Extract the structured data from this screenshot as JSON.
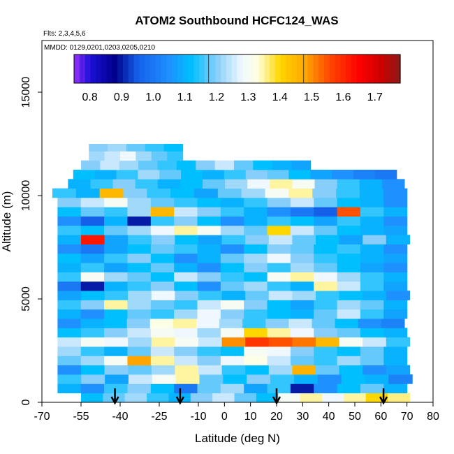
{
  "chart_data": {
    "type": "heatmap",
    "title": "ATOM2 Southbound HCFC124_WAS",
    "flights_label": "Flts: 2,3,4,5,6",
    "dates_label": "MMDD: 0129,0201,0203,0205,0210",
    "xlabel": "Latitude (deg N)",
    "ylabel": "Altitude (m)",
    "xlim": [
      -70,
      80
    ],
    "ylim": [
      0,
      17500
    ],
    "x_ticks": [
      -70,
      -55,
      -40,
      -25,
      -10,
      0,
      10,
      20,
      30,
      40,
      50,
      60,
      70,
      80
    ],
    "y_ticks": [
      0,
      5000,
      10000,
      15000
    ],
    "colorbar": {
      "range": [
        0.75,
        1.78
      ],
      "ticks": [
        0.8,
        0.9,
        1.0,
        1.1,
        1.2,
        1.3,
        1.4,
        1.5,
        1.6,
        1.7
      ],
      "stops": [
        {
          "v": 0.75,
          "color": "#9b30ff"
        },
        {
          "v": 0.8,
          "color": "#1c10d8"
        },
        {
          "v": 0.88,
          "color": "#00008b"
        },
        {
          "v": 0.95,
          "color": "#1560e8"
        },
        {
          "v": 1.05,
          "color": "#1e90ff"
        },
        {
          "v": 1.12,
          "color": "#00bfff"
        },
        {
          "v": 1.2,
          "color": "#87cefa"
        },
        {
          "v": 1.28,
          "color": "#f0f8ff"
        },
        {
          "v": 1.33,
          "color": "#ffffe0"
        },
        {
          "v": 1.4,
          "color": "#ffd700"
        },
        {
          "v": 1.48,
          "color": "#ffa500"
        },
        {
          "v": 1.56,
          "color": "#ff4500"
        },
        {
          "v": 1.65,
          "color": "#ff0000"
        },
        {
          "v": 1.72,
          "color": "#cd0000"
        },
        {
          "v": 1.78,
          "color": "#8b1a1a"
        }
      ]
    },
    "layers": [
      {
        "z0": 0,
        "z1": 450,
        "lat0": -55,
        "lat1": 71,
        "values": [
          1.12,
          1.18,
          1.22,
          1.15,
          1.1,
          1.2,
          1.25,
          1.18,
          1.12,
          1.3,
          1.35,
          1.28,
          1.35,
          1.4,
          1.36
        ]
      },
      {
        "z0": 450,
        "z1": 900,
        "lat0": -64,
        "lat1": 70,
        "values": [
          1.1,
          1.05,
          1.15,
          1.2,
          1.12,
          1.0,
          1.18,
          1.22,
          1.08,
          1.15,
          0.9,
          1.05,
          1.12,
          1.18,
          1.1
        ]
      },
      {
        "z0": 900,
        "z1": 1350,
        "lat0": -64,
        "lat1": 72,
        "values": [
          1.15,
          1.2,
          1.08,
          1.25,
          1.3,
          1.35,
          1.18,
          1.12,
          1.2,
          1.15,
          1.1,
          1.05,
          1.12,
          1.1,
          1.02
        ]
      },
      {
        "z0": 1350,
        "z1": 1800,
        "lat0": -64,
        "lat1": 71,
        "values": [
          1.05,
          1.12,
          1.2,
          1.18,
          1.22,
          1.35,
          1.25,
          1.15,
          1.12,
          1.22,
          1.46,
          1.18,
          1.12,
          1.05,
          1.08
        ]
      },
      {
        "z0": 1800,
        "z1": 2250,
        "lat0": -64,
        "lat1": 70,
        "values": [
          1.18,
          1.22,
          1.3,
          1.48,
          1.35,
          1.25,
          1.2,
          1.28,
          1.32,
          1.25,
          1.18,
          1.15,
          1.22,
          1.18,
          1.1
        ]
      },
      {
        "z0": 2250,
        "z1": 2700,
        "lat0": -64,
        "lat1": 70,
        "values": [
          1.22,
          1.15,
          1.1,
          1.18,
          1.25,
          1.2,
          1.15,
          1.12,
          1.3,
          1.28,
          1.2,
          1.15,
          1.12,
          1.18,
          1.1
        ]
      },
      {
        "z0": 2700,
        "z1": 3150,
        "lat0": -64,
        "lat1": 71,
        "values": [
          1.25,
          1.3,
          1.28,
          1.22,
          1.35,
          1.3,
          1.25,
          1.5,
          1.58,
          1.55,
          1.52,
          1.45,
          1.3,
          1.25,
          1.15
        ]
      },
      {
        "z0": 3150,
        "z1": 3600,
        "lat0": -64,
        "lat1": 70,
        "values": [
          1.12,
          1.15,
          1.2,
          1.25,
          1.3,
          1.28,
          1.22,
          1.3,
          1.4,
          1.35,
          1.28,
          1.2,
          1.18,
          1.12,
          1.1
        ]
      },
      {
        "z0": 3600,
        "z1": 4050,
        "lat0": -64,
        "lat1": 69,
        "values": [
          1.05,
          1.1,
          1.12,
          1.2,
          1.32,
          1.35,
          1.28,
          1.22,
          1.15,
          1.2,
          1.25,
          1.18,
          1.12,
          1.05,
          1.02
        ]
      },
      {
        "z0": 4050,
        "z1": 4500,
        "lat0": -64,
        "lat1": 70,
        "values": [
          1.1,
          1.05,
          1.12,
          1.18,
          1.15,
          1.22,
          1.28,
          1.2,
          1.15,
          1.12,
          1.1,
          1.18,
          1.25,
          1.15,
          1.08
        ]
      },
      {
        "z0": 4500,
        "z1": 4950,
        "lat0": -64,
        "lat1": 70,
        "values": [
          1.15,
          1.2,
          1.35,
          1.22,
          1.18,
          1.15,
          1.25,
          1.3,
          1.2,
          1.12,
          1.08,
          1.15,
          1.22,
          1.18,
          1.1
        ]
      },
      {
        "z0": 4950,
        "z1": 5400,
        "lat0": -64,
        "lat1": 71,
        "values": [
          1.08,
          1.12,
          1.15,
          1.22,
          1.28,
          1.2,
          1.15,
          1.1,
          1.18,
          1.25,
          1.22,
          1.15,
          1.12,
          1.1,
          1.05
        ]
      },
      {
        "z0": 5400,
        "z1": 5850,
        "lat0": -64,
        "lat1": 70,
        "values": [
          1.0,
          0.9,
          1.1,
          1.15,
          1.2,
          1.12,
          1.05,
          1.18,
          1.22,
          1.15,
          1.1,
          1.35,
          1.25,
          1.15,
          1.08
        ]
      },
      {
        "z0": 5850,
        "z1": 6300,
        "lat0": -64,
        "lat1": 70,
        "values": [
          1.15,
          1.3,
          1.22,
          1.18,
          1.12,
          1.25,
          1.2,
          1.15,
          1.12,
          1.3,
          1.35,
          1.28,
          1.22,
          1.15,
          1.1
        ]
      },
      {
        "z0": 6300,
        "z1": 6750,
        "lat0": -64,
        "lat1": 70,
        "values": [
          1.1,
          1.15,
          1.08,
          1.12,
          1.18,
          1.1,
          1.05,
          1.12,
          1.2,
          1.15,
          1.22,
          1.18,
          1.12,
          1.08,
          1.05
        ]
      },
      {
        "z0": 6750,
        "z1": 7200,
        "lat0": -64,
        "lat1": 70,
        "values": [
          1.12,
          1.08,
          1.15,
          1.2,
          1.12,
          1.05,
          1.1,
          1.18,
          1.22,
          1.28,
          1.2,
          1.15,
          1.12,
          1.1,
          1.08
        ]
      },
      {
        "z0": 7200,
        "z1": 7650,
        "lat0": -64,
        "lat1": 70,
        "values": [
          1.05,
          1.0,
          1.08,
          1.12,
          1.18,
          1.15,
          1.1,
          1.05,
          1.12,
          1.2,
          1.18,
          1.12,
          1.15,
          1.1,
          1.05
        ]
      },
      {
        "z0": 7650,
        "z1": 8100,
        "lat0": -64,
        "lat1": 71,
        "values": [
          1.1,
          1.62,
          1.08,
          1.15,
          1.2,
          1.12,
          1.08,
          1.15,
          1.2,
          1.25,
          1.18,
          1.12,
          1.08,
          1.2,
          1.1
        ]
      },
      {
        "z0": 8100,
        "z1": 8550,
        "lat0": -64,
        "lat1": 70,
        "values": [
          1.15,
          1.12,
          1.18,
          1.22,
          1.28,
          1.35,
          1.3,
          1.22,
          1.18,
          1.4,
          1.25,
          1.18,
          1.12,
          1.1,
          1.08
        ]
      },
      {
        "z0": 8550,
        "z1": 9000,
        "lat0": -64,
        "lat1": 70,
        "values": [
          1.05,
          0.95,
          1.1,
          0.9,
          1.15,
          1.2,
          1.12,
          1.05,
          1.1,
          1.15,
          1.12,
          1.08,
          1.15,
          1.1,
          1.05
        ]
      },
      {
        "z0": 9000,
        "z1": 9450,
        "lat0": -64,
        "lat1": 70,
        "values": [
          1.12,
          1.18,
          1.15,
          1.22,
          1.45,
          1.25,
          1.2,
          1.15,
          1.1,
          1.05,
          1.0,
          0.95,
          1.55,
          1.15,
          1.1
        ]
      },
      {
        "z0": 9450,
        "z1": 9900,
        "lat0": -64,
        "lat1": 70,
        "values": [
          1.2,
          1.25,
          1.3,
          1.22,
          1.18,
          1.15,
          1.12,
          1.1,
          1.15,
          1.2,
          1.25,
          1.18,
          1.12,
          1.1,
          1.05
        ]
      },
      {
        "z0": 9900,
        "z1": 10350,
        "lat0": -66,
        "lat1": 70,
        "values": [
          1.15,
          1.1,
          1.45,
          1.2,
          1.15,
          1.12,
          1.08,
          1.18,
          1.22,
          1.3,
          1.35,
          1.2,
          1.15,
          1.1,
          1.05
        ]
      },
      {
        "z0": 10350,
        "z1": 10800,
        "lat0": -60,
        "lat1": 69,
        "values": [
          1.1,
          1.15,
          1.2,
          1.15,
          1.1,
          1.12,
          1.18,
          1.22,
          1.28,
          1.35,
          1.3,
          1.2,
          1.15,
          1.1,
          1.05
        ]
      },
      {
        "z0": 10800,
        "z1": 11250,
        "lat0": -58,
        "lat1": 66,
        "values": [
          1.12,
          1.1,
          1.15,
          1.22,
          1.18,
          1.12,
          1.1,
          1.15,
          1.2,
          1.18,
          1.12,
          1.08,
          1.05,
          1.02,
          1.0
        ]
      },
      {
        "z0": 11250,
        "z1": 11700,
        "lat0": -55,
        "lat1": 33,
        "values": [
          1.2,
          1.25,
          1.22,
          1.18,
          1.15,
          1.12,
          1.2,
          1.25,
          1.18,
          1.12,
          1.1,
          1.08
        ]
      },
      {
        "z0": 11700,
        "z1": 12150,
        "lat0": -52,
        "lat1": -16,
        "values": [
          1.22,
          1.25,
          1.28,
          1.22,
          1.18,
          1.15
        ]
      },
      {
        "z0": 12150,
        "z1": 12500,
        "lat0": -52,
        "lat1": -16,
        "values": [
          1.2,
          1.22,
          1.18,
          1.15,
          1.12
        ]
      }
    ],
    "arrows_lat": [
      -42,
      -17,
      20,
      61
    ]
  }
}
